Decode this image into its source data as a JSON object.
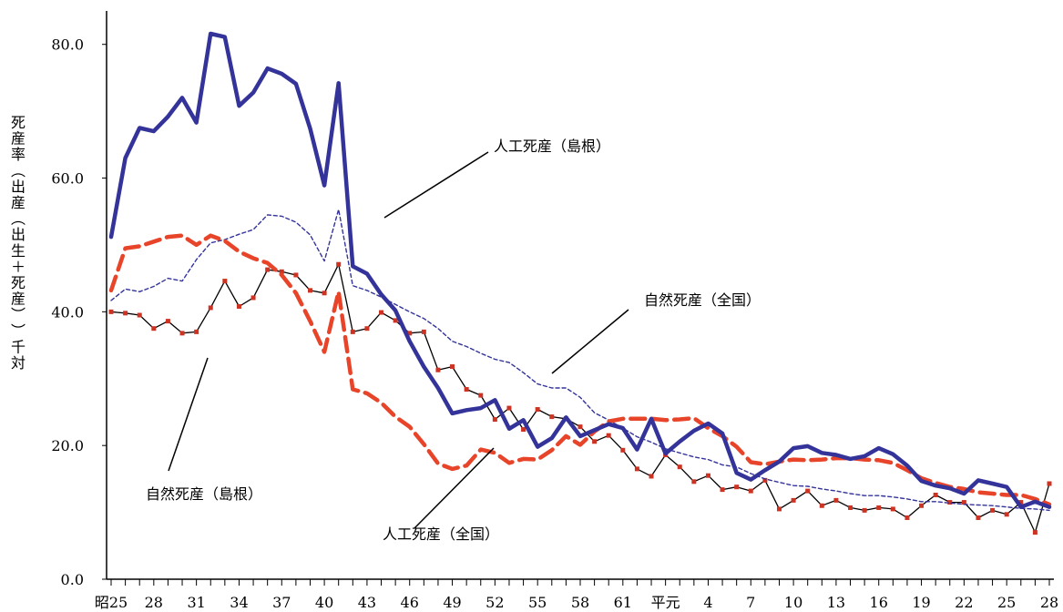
{
  "chart_data": {
    "type": "line",
    "ylabel": "死産率（出産（出生＋死産））千対",
    "ylim": [
      0,
      85
    ],
    "y_ticks": [
      {
        "v": 0,
        "label": "0.0"
      },
      {
        "v": 20,
        "label": "20.0"
      },
      {
        "v": 40,
        "label": "40.0"
      },
      {
        "v": 60,
        "label": "60.0"
      },
      {
        "v": 80,
        "label": "80.0"
      }
    ],
    "x_categories": [
      "昭25",
      "26",
      "27",
      "28",
      "29",
      "30",
      "31",
      "32",
      "33",
      "34",
      "35",
      "36",
      "37",
      "38",
      "39",
      "40",
      "41",
      "42",
      "43",
      "44",
      "45",
      "46",
      "47",
      "48",
      "49",
      "50",
      "51",
      "52",
      "53",
      "54",
      "55",
      "56",
      "57",
      "58",
      "59",
      "60",
      "61",
      "62",
      "63",
      "平元",
      "2",
      "3",
      "4",
      "5",
      "6",
      "7",
      "8",
      "9",
      "10",
      "11",
      "12",
      "13",
      "14",
      "15",
      "16",
      "17",
      "18",
      "19",
      "20",
      "21",
      "22",
      "23",
      "24",
      "25",
      "26",
      "27",
      "28"
    ],
    "x_tick_labels": [
      {
        "i": 0,
        "label": "昭25"
      },
      {
        "i": 3,
        "label": "28"
      },
      {
        "i": 6,
        "label": "31"
      },
      {
        "i": 9,
        "label": "34"
      },
      {
        "i": 12,
        "label": "37"
      },
      {
        "i": 15,
        "label": "40"
      },
      {
        "i": 18,
        "label": "43"
      },
      {
        "i": 21,
        "label": "46"
      },
      {
        "i": 24,
        "label": "49"
      },
      {
        "i": 27,
        "label": "52"
      },
      {
        "i": 30,
        "label": "55"
      },
      {
        "i": 33,
        "label": "58"
      },
      {
        "i": 36,
        "label": "61"
      },
      {
        "i": 39,
        "label": "平元"
      },
      {
        "i": 42,
        "label": "4"
      },
      {
        "i": 45,
        "label": "7"
      },
      {
        "i": 48,
        "label": "10"
      },
      {
        "i": 51,
        "label": "13"
      },
      {
        "i": 54,
        "label": "16"
      },
      {
        "i": 57,
        "label": "19"
      },
      {
        "i": 60,
        "label": "22"
      },
      {
        "i": 63,
        "label": "25"
      },
      {
        "i": 66,
        "label": "28"
      }
    ],
    "series": [
      {
        "name": "人工死産（島根）",
        "color": "#33339a",
        "style": "solid-thick",
        "values": [
          51.2,
          63.0,
          67.5,
          67.0,
          69.2,
          72.0,
          68.3,
          81.6,
          81.1,
          70.8,
          72.8,
          76.4,
          75.6,
          74.1,
          67.4,
          58.9,
          74.2,
          46.8,
          45.7,
          42.6,
          40.2,
          35.6,
          31.8,
          28.6,
          24.8,
          25.3,
          25.6,
          26.8,
          22.5,
          23.8,
          19.8,
          21.1,
          24.2,
          21.4,
          22.3,
          23.2,
          22.6,
          19.4,
          24.0,
          18.8,
          20.6,
          22.2,
          23.3,
          21.8,
          15.9,
          14.9,
          16.3,
          17.6,
          19.6,
          19.9,
          18.9,
          18.6,
          18.0,
          18.4,
          19.6,
          18.7,
          17.0,
          14.7,
          14.0,
          13.6,
          12.8,
          14.8,
          14.3,
          13.8,
          10.8,
          11.6,
          10.8
        ]
      },
      {
        "name": "自然死産（全国）",
        "color": "#33339a",
        "style": "dashed-thin",
        "values": [
          41.7,
          43.4,
          43.0,
          43.8,
          45.0,
          44.6,
          47.8,
          50.3,
          50.8,
          51.6,
          52.3,
          54.5,
          54.3,
          53.4,
          51.5,
          47.6,
          55.3,
          43.9,
          43.2,
          42.2,
          41.1,
          40.0,
          39.0,
          37.5,
          35.6,
          34.8,
          33.8,
          32.9,
          32.4,
          30.9,
          29.2,
          28.6,
          28.6,
          27.2,
          24.9,
          23.8,
          22.6,
          21.3,
          20.5,
          19.5,
          18.9,
          18.3,
          17.9,
          17.1,
          16.8,
          15.8,
          15.0,
          14.5,
          14.0,
          13.9,
          13.5,
          13.2,
          12.8,
          12.5,
          12.5,
          12.3,
          12.0,
          11.6,
          11.6,
          11.4,
          11.2,
          11.1,
          11.0,
          10.8,
          10.6,
          10.5,
          10.3
        ]
      },
      {
        "name": "人工死産（全国）",
        "color": "#e8442a",
        "style": "dashed-thick",
        "values": [
          43.2,
          49.5,
          49.8,
          50.5,
          51.2,
          51.4,
          50.0,
          51.4,
          50.6,
          49.0,
          48.0,
          47.3,
          45.5,
          42.8,
          38.6,
          34.0,
          43.0,
          28.4,
          27.8,
          26.4,
          24.3,
          22.8,
          20.2,
          17.3,
          16.5,
          17.0,
          19.4,
          18.9,
          17.4,
          18.0,
          17.9,
          19.3,
          21.4,
          20.1,
          22.1,
          23.6,
          24.0,
          24.0,
          24.0,
          23.8,
          23.9,
          24.1,
          22.6,
          21.4,
          19.8,
          17.5,
          17.2,
          17.6,
          17.9,
          17.8,
          17.9,
          18.1,
          18.1,
          17.9,
          17.8,
          17.4,
          16.3,
          15.1,
          14.4,
          13.8,
          13.5,
          13.0,
          12.8,
          12.6,
          12.6,
          12.0,
          11.2
        ]
      },
      {
        "name": "自然死産（島根）",
        "color": "#000000",
        "marker_color": "#cc3322",
        "style": "thin-markers",
        "values": [
          40.0,
          39.8,
          39.5,
          37.5,
          38.6,
          36.8,
          37.0,
          40.6,
          44.6,
          40.8,
          42.1,
          46.3,
          46.0,
          45.5,
          43.2,
          42.8,
          47.1,
          37.0,
          37.5,
          39.9,
          38.7,
          36.8,
          37.0,
          31.3,
          31.8,
          28.4,
          27.5,
          23.9,
          25.6,
          22.4,
          25.4,
          24.3,
          24.0,
          22.8,
          20.6,
          21.5,
          19.3,
          16.5,
          15.4,
          18.6,
          16.8,
          14.6,
          15.5,
          13.4,
          13.8,
          13.2,
          14.8,
          10.5,
          11.8,
          13.2,
          11.0,
          11.8,
          10.7,
          10.3,
          10.7,
          10.5,
          9.2,
          11.0,
          12.6,
          11.5,
          11.5,
          9.2,
          10.3,
          9.7,
          11.5,
          7.0,
          14.3
        ]
      }
    ],
    "annotations": [
      {
        "text": "人工死産（島根）",
        "series": 0
      },
      {
        "text": "自然死産（全国）",
        "series": 1
      },
      {
        "text": "自然死産（島根）",
        "series": 3
      },
      {
        "text": "人工死産（全国）",
        "series": 2
      }
    ]
  }
}
